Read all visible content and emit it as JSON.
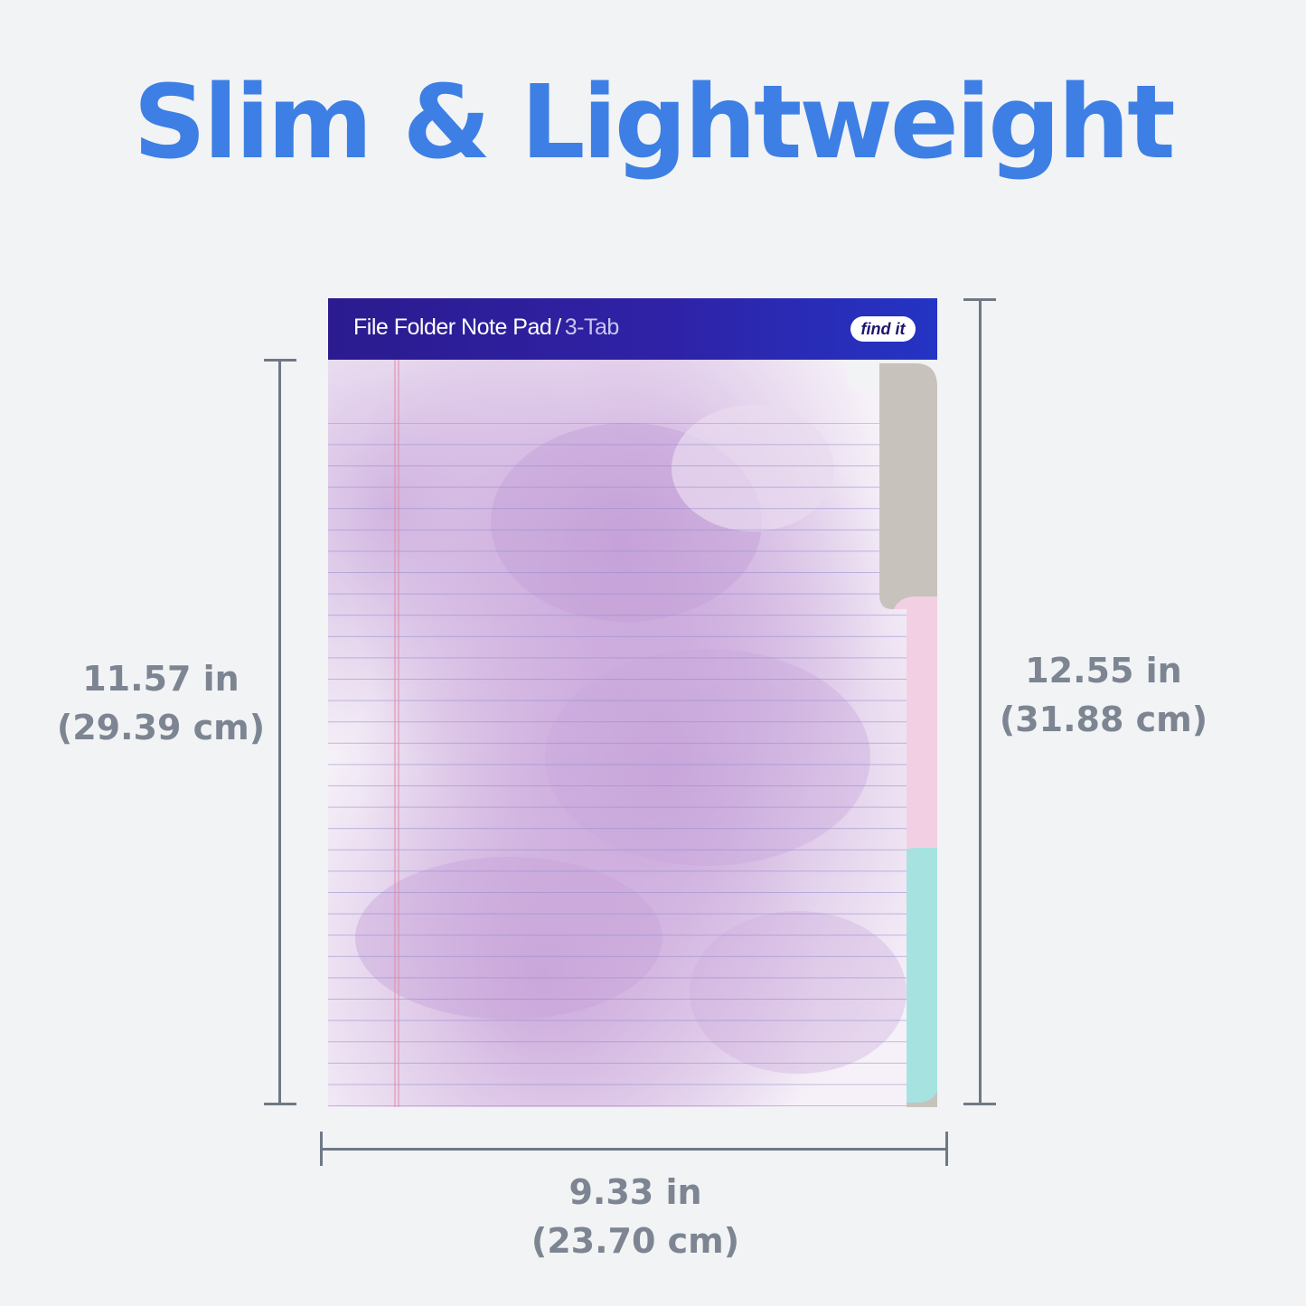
{
  "headline": "Slim & Lightweight",
  "product": {
    "title": "File Folder Note Pad",
    "separator": "/",
    "subtitle": "3-Tab",
    "logo": "find it"
  },
  "dimensions": {
    "left": {
      "imperial": "11.57 in",
      "metric": "(29.39 cm)"
    },
    "right": {
      "imperial": "12.55 in",
      "metric": "(31.88 cm)"
    },
    "bottom": {
      "imperial": "9.33 in",
      "metric": "(23.70 cm)"
    }
  },
  "colors": {
    "headline": "#3d7fe4",
    "dimension_text": "#7c8591",
    "background": "#f1f3f5",
    "header": "#2b1b8f",
    "tab_pink": "#f3cfe3",
    "tab_teal": "#a6e3e0",
    "paper_purple": "#c9a8da"
  }
}
